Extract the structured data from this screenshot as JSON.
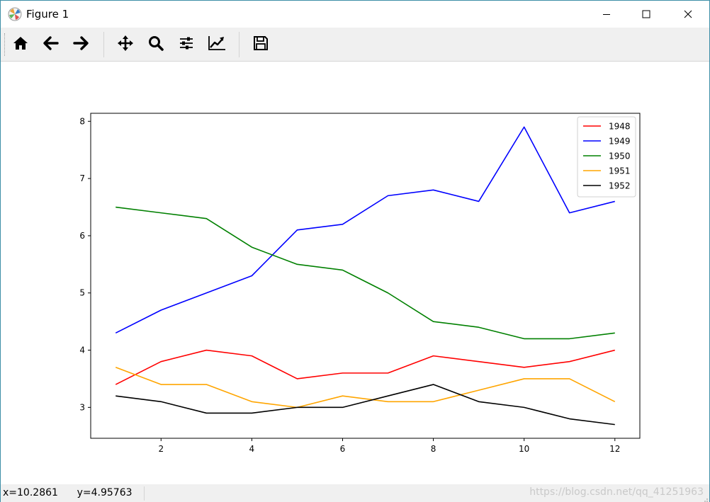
{
  "window": {
    "title": "Figure 1",
    "minimize_icon": "minimize-icon",
    "maximize_icon": "maximize-icon",
    "close_icon": "close-icon"
  },
  "toolbar": {
    "tools": [
      {
        "name": "home-icon"
      },
      {
        "name": "back-arrow-icon"
      },
      {
        "name": "forward-arrow-icon"
      },
      {
        "name": "pan-icon"
      },
      {
        "name": "zoom-icon"
      },
      {
        "name": "subplots-icon"
      },
      {
        "name": "edit-axes-icon"
      },
      {
        "name": "save-icon"
      }
    ]
  },
  "status": {
    "coords": "x=10.2861      y=4.95763",
    "watermark": "https://blog.csdn.net/qq_41251963"
  },
  "chart_data": {
    "type": "line",
    "title": "",
    "xlabel": "",
    "ylabel": "",
    "xlim": [
      0.45,
      12.55
    ],
    "ylim": [
      2.46,
      8.14
    ],
    "xticks": [
      2,
      4,
      6,
      8,
      10,
      12
    ],
    "yticks": [
      3,
      4,
      5,
      6,
      7,
      8
    ],
    "grid": false,
    "legend_position": "top-right",
    "x": [
      1,
      2,
      3,
      4,
      5,
      6,
      7,
      8,
      9,
      10,
      11,
      12
    ],
    "series": [
      {
        "name": "1948",
        "color": "#ff0000",
        "values": [
          3.4,
          3.8,
          4.0,
          3.9,
          3.5,
          3.6,
          3.6,
          3.9,
          3.8,
          3.7,
          3.8,
          4.0
        ]
      },
      {
        "name": "1949",
        "color": "#0000ff",
        "values": [
          4.3,
          4.7,
          5.0,
          5.3,
          6.1,
          6.2,
          6.7,
          6.8,
          6.6,
          7.9,
          6.4,
          6.6
        ]
      },
      {
        "name": "1950",
        "color": "#008000",
        "values": [
          6.5,
          6.4,
          6.3,
          5.8,
          5.5,
          5.4,
          5.0,
          4.5,
          4.4,
          4.2,
          4.2,
          4.3
        ]
      },
      {
        "name": "1951",
        "color": "#ffa500",
        "values": [
          3.7,
          3.4,
          3.4,
          3.1,
          3.0,
          3.2,
          3.1,
          3.1,
          3.3,
          3.5,
          3.5,
          3.1
        ]
      },
      {
        "name": "1952",
        "color": "#000000",
        "values": [
          3.2,
          3.1,
          2.9,
          2.9,
          3.0,
          3.0,
          3.2,
          3.4,
          3.1,
          3.0,
          2.8,
          2.7
        ]
      }
    ]
  }
}
